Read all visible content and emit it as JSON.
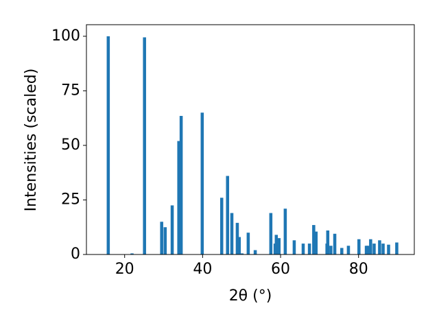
{
  "chart_data": {
    "type": "bar",
    "x_label": "2θ (°)",
    "y_label": "Intensities (scaled)",
    "x": [
      15.8,
      21.9,
      25.1,
      29.5,
      30.4,
      32.2,
      33.9,
      34.5,
      39.9,
      44.9,
      46.4,
      47.5,
      48.9,
      49.4,
      50.1,
      51.7,
      53.5,
      57.5,
      58.6,
      58.9,
      59.6,
      61.2,
      63.5,
      65.8,
      67.4,
      68.5,
      69.1,
      71.9,
      72.1,
      72.9,
      73.9,
      75.7,
      77.4,
      80.1,
      82.0,
      82.4,
      83.1,
      84.0,
      85.4,
      86.3,
      87.7,
      89.8
    ],
    "values": [
      100,
      0.5,
      99.5,
      15,
      12.5,
      22.5,
      52,
      63.5,
      65,
      26,
      36,
      19,
      14.5,
      8,
      0.5,
      10,
      2,
      19,
      5,
      9,
      7.5,
      21,
      6.5,
      5,
      5,
      13.5,
      10.5,
      5,
      11,
      4,
      9.5,
      3,
      4,
      7,
      4,
      4,
      7,
      5,
      6.5,
      5,
      4.5,
      5.5
    ],
    "color": "#1f77b4",
    "xlim": [
      10.2,
      94.3
    ],
    "xticks": [
      20,
      40,
      60,
      80
    ],
    "ylim": [
      0,
      105.3
    ],
    "yticks": [
      0,
      25,
      50,
      75,
      100
    ]
  }
}
